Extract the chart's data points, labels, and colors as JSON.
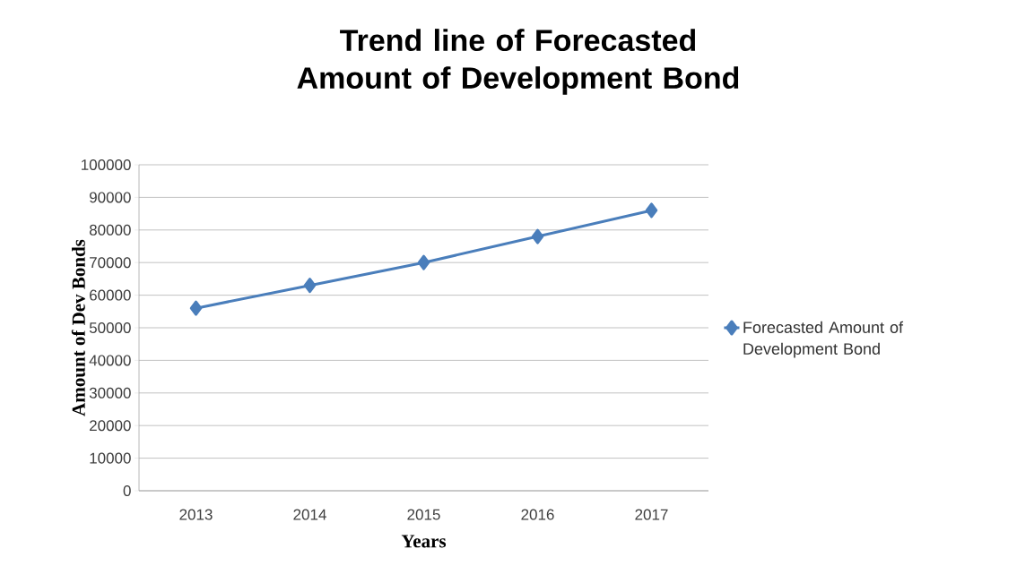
{
  "chart_data": {
    "type": "line",
    "title": "Trend line of Forecasted Amount of Development Bond",
    "xlabel": "Years",
    "ylabel": "Amount of Dev Bonds",
    "categories": [
      "2013",
      "2014",
      "2015",
      "2016",
      "2017"
    ],
    "series": [
      {
        "name": "Forecasted Amount of Development Bond",
        "color": "#4a7ebb",
        "values": [
          56000,
          63000,
          70000,
          78000,
          86000
        ]
      }
    ],
    "ylim": [
      0,
      100000
    ],
    "yticks": [
      0,
      10000,
      20000,
      30000,
      40000,
      50000,
      60000,
      70000,
      80000,
      90000,
      100000
    ],
    "grid": "y",
    "legend": "right",
    "marker": "diamond",
    "line_style": "solid"
  }
}
